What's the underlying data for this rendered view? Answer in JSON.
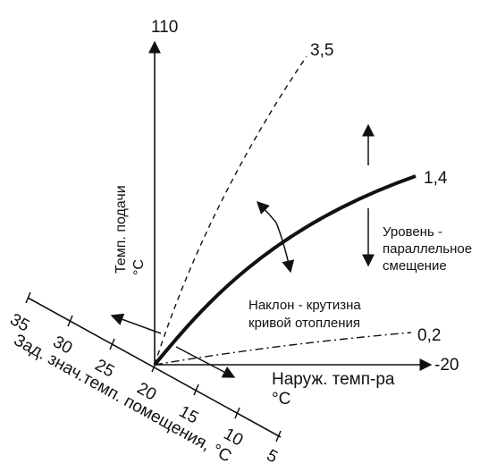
{
  "y_axis": {
    "max_label": "110",
    "title_line1": "Темп. подачи",
    "title_line2": "°C"
  },
  "x_axis": {
    "end_label": "-20",
    "title_line1": "Наруж. темп-ра",
    "title_line2": "°C"
  },
  "room_axis": {
    "ticks": [
      "35",
      "30",
      "25",
      "20",
      "15",
      "10",
      "5"
    ],
    "title": "Зад. знач.темп. помещения, °C"
  },
  "curves": {
    "steep_label": "3,5",
    "main_label": "1,4",
    "flat_label": "0,2"
  },
  "annotations": {
    "level_line1": "Уровень -",
    "level_line2": "параллельное",
    "level_line3": "смещение",
    "slope_line1": "Наклон - крутизна",
    "slope_line2": "кривой отопления"
  },
  "colors": {
    "ink": "#111111",
    "background": "#ffffff"
  }
}
